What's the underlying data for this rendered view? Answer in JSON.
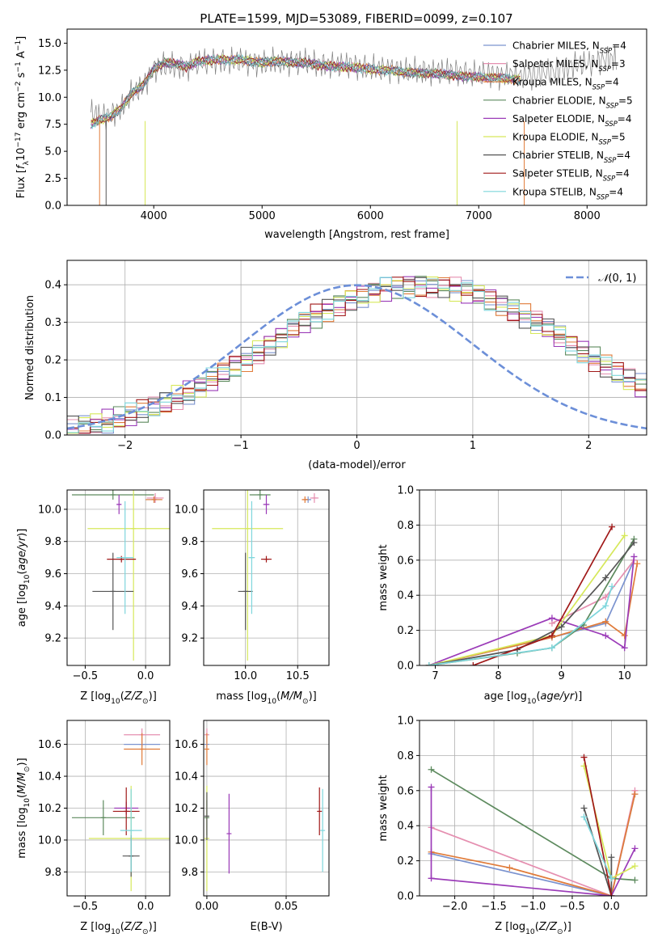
{
  "figure_title": "PLATE=1599, MJD=53089, FIBERID=0099, z=0.107",
  "colors": {
    "Chabrier MILES": "#7b93cf",
    "Salpeter MILES": "#e58fb0",
    "Kroupa MILES": "#e07b39",
    "Chabrier ELODIE": "#5d8a5e",
    "Salpeter ELODIE": "#9b3bb8",
    "Kroupa ELODIE": "#d6e85a",
    "Chabrier STELIB": "#555555",
    "Salpeter STELIB": "#a01818",
    "Kroupa STELIB": "#7ed6dc",
    "normal_curve": "#6c8fd8",
    "grid": "#b0b0b0"
  },
  "chart_data": [
    {
      "type": "line",
      "panel": "spectrum",
      "title": "PLATE=1599, MJD=53089, FIBERID=0099, z=0.107",
      "xlabel": "wavelength [Angstrom, rest frame]",
      "ylabel": "Flux [f_λ 10^-17 erg cm^-2 s^-1 A^-1]",
      "xlim": [
        3200,
        8550
      ],
      "ylim": [
        0,
        16.3
      ],
      "xticks": [
        4000,
        5000,
        6000,
        7000,
        8000
      ],
      "yticks": [
        0.0,
        2.5,
        5.0,
        7.5,
        10.0,
        12.5,
        15.0
      ],
      "grid": false,
      "legend_position": "top-right",
      "legend": [
        "Chabrier MILES, N_SSP=4",
        "Salpeter MILES, N_SSP=3",
        "Kroupa MILES, N_SSP=4",
        "Chabrier ELODIE, N_SSP=5",
        "Salpeter ELODIE, N_SSP=4",
        "Kroupa ELODIE, N_SSP=5",
        "Chabrier STELIB, N_SSP=4",
        "Salpeter STELIB, N_SSP=4",
        "Kroupa STELIB, N_SSP=4"
      ],
      "data_series": {
        "name": "data",
        "color": "#808080",
        "x": [
          3420,
          3500,
          3600,
          3700,
          3800,
          3900,
          4000,
          4100,
          4200,
          4300,
          4400,
          4500,
          4600,
          4700,
          4800,
          4900,
          5000,
          5100,
          5200,
          5300,
          5400,
          5500,
          5600,
          5700,
          5800,
          5900,
          6000,
          6100,
          6200,
          6300,
          6400,
          6500,
          6600,
          6700,
          6800,
          6900,
          7000,
          7100,
          7200,
          7300,
          7400,
          7500,
          7600,
          7700,
          7800,
          7900,
          8000,
          8100,
          8200,
          8280
        ],
        "y": [
          8.6,
          8.2,
          8.3,
          9.0,
          10.4,
          11.0,
          12.5,
          13.0,
          12.9,
          12.7,
          13.2,
          13.3,
          13.4,
          13.3,
          13.4,
          13.2,
          13.1,
          13.3,
          13.3,
          13.2,
          13.3,
          13.1,
          13.0,
          12.9,
          13.0,
          12.8,
          12.7,
          12.6,
          12.6,
          12.4,
          12.5,
          12.4,
          12.3,
          12.4,
          12.3,
          12.2,
          12.1,
          12.2,
          11.9,
          12.1,
          11.9,
          12.0,
          12.3,
          12.4,
          12.7,
          13.0,
          13.1,
          13.3,
          13.6,
          13.4
        ]
      },
      "model_series": {
        "x": [
          3420,
          3500,
          3600,
          3700,
          3800,
          3900,
          4000,
          4100,
          4200,
          4300,
          4400,
          4500,
          4600,
          4700,
          4800,
          4900,
          5000,
          5100,
          5200,
          5300,
          5400,
          5500,
          5600,
          5700,
          5800,
          5900,
          6000,
          6100,
          6200,
          6300,
          6400,
          6500,
          6600,
          6700,
          6800,
          6900,
          7000,
          7100,
          7200,
          7300,
          7400
        ],
        "y": [
          7.5,
          7.9,
          8.2,
          9.0,
          10.4,
          11.1,
          12.6,
          13.2,
          13.1,
          12.8,
          13.3,
          13.4,
          13.5,
          13.4,
          13.5,
          13.3,
          13.2,
          13.3,
          13.3,
          13.2,
          13.2,
          13.0,
          12.9,
          12.8,
          12.8,
          12.7,
          12.6,
          12.5,
          12.5,
          12.3,
          12.3,
          12.2,
          12.2,
          12.1,
          12.0,
          11.9,
          11.9,
          11.8,
          11.8,
          11.7,
          11.6
        ]
      }
    },
    {
      "type": "line",
      "panel": "residuals",
      "xlabel": "(data-model)/error",
      "ylabel": "Normed distribution",
      "xlim": [
        -2.5,
        2.5
      ],
      "ylim": [
        0,
        0.465
      ],
      "xticks": [
        -2,
        -1,
        0,
        1,
        2
      ],
      "yticks": [
        0.0,
        0.1,
        0.2,
        0.3,
        0.4
      ],
      "grid": true,
      "legend_position": "top-right",
      "legend": [
        "N(0,1)"
      ],
      "bin_width": 0.1,
      "bin_start": -2.5,
      "histogram_envelope": [
        0.018,
        0.022,
        0.03,
        0.036,
        0.044,
        0.052,
        0.062,
        0.073,
        0.086,
        0.1,
        0.114,
        0.13,
        0.147,
        0.164,
        0.183,
        0.202,
        0.222,
        0.243,
        0.262,
        0.282,
        0.3,
        0.318,
        0.334,
        0.349,
        0.362,
        0.372,
        0.382,
        0.39,
        0.395,
        0.398,
        0.399,
        0.398,
        0.395,
        0.39,
        0.382,
        0.372,
        0.362,
        0.349,
        0.334,
        0.318,
        0.3,
        0.282,
        0.262,
        0.243,
        0.222,
        0.202,
        0.183,
        0.164,
        0.147,
        0.13
      ]
    },
    {
      "type": "scatter",
      "panel": "age-vs-Z",
      "xlabel": "Z [log10(Z/Z⊙)]",
      "ylabel": "age  [log10(age/yr)]",
      "xlim": [
        -0.65,
        0.2
      ],
      "ylim": [
        9.03,
        10.12
      ],
      "xticks": [
        -0.5,
        0.0
      ],
      "yticks": [
        9.2,
        9.4,
        9.6,
        9.8,
        10.0
      ],
      "grid": true,
      "points": [
        {
          "model": "Chabrier MILES",
          "x": 0.07,
          "y": 10.06,
          "xerr": 0.06,
          "yerr": 0.02
        },
        {
          "model": "Salpeter MILES",
          "x": 0.08,
          "y": 10.07,
          "xerr": 0.07,
          "yerr": 0.03
        },
        {
          "model": "Kroupa MILES",
          "x": 0.07,
          "y": 10.06,
          "xerr": 0.07,
          "yerr": 0.02
        },
        {
          "model": "Chabrier ELODIE",
          "x": -0.27,
          "y": 10.09,
          "xerr": 0.34,
          "yerr": 0.03
        },
        {
          "model": "Salpeter ELODIE",
          "x": -0.22,
          "y": 10.03,
          "xerr": 0.02,
          "yerr": 0.06
        },
        {
          "model": "Kroupa ELODIE",
          "x": -0.1,
          "y": 9.88,
          "xerr": 0.38,
          "yerr": 0.82
        },
        {
          "model": "Chabrier STELIB",
          "x": -0.27,
          "y": 9.49,
          "xerr": 0.17,
          "yerr": 0.24
        },
        {
          "model": "Salpeter STELIB",
          "x": -0.2,
          "y": 9.69,
          "xerr": 0.12,
          "yerr": 0.02
        },
        {
          "model": "Kroupa STELIB",
          "x": -0.17,
          "y": 9.7,
          "xerr": 0.07,
          "yerr": 0.35
        }
      ]
    },
    {
      "type": "scatter",
      "panel": "age-vs-mass",
      "xlabel": "mass [log10(M/M⊙)]",
      "ylabel": "",
      "xlim": [
        9.6,
        10.8
      ],
      "ylim": [
        9.03,
        10.12
      ],
      "xticks": [
        10.0,
        10.5
      ],
      "yticks": [
        9.2,
        9.4,
        9.6,
        9.8,
        10.0
      ],
      "grid": true,
      "points": [
        {
          "model": "Chabrier MILES",
          "x": 10.6,
          "y": 10.06,
          "xerr": 0.03,
          "yerr": 0.02
        },
        {
          "model": "Salpeter MILES",
          "x": 10.66,
          "y": 10.07,
          "xerr": 0.04,
          "yerr": 0.03
        },
        {
          "model": "Kroupa MILES",
          "x": 10.57,
          "y": 10.06,
          "xerr": 0.03,
          "yerr": 0.02
        },
        {
          "model": "Chabrier ELODIE",
          "x": 10.14,
          "y": 10.09,
          "xerr": 0.1,
          "yerr": 0.03
        },
        {
          "model": "Salpeter ELODIE",
          "x": 10.2,
          "y": 10.03,
          "xerr": 0.03,
          "yerr": 0.06
        },
        {
          "model": "Kroupa ELODIE",
          "x": 10.02,
          "y": 9.88,
          "xerr": 0.34,
          "yerr": 0.82
        },
        {
          "model": "Chabrier STELIB",
          "x": 10.0,
          "y": 9.49,
          "xerr": 0.07,
          "yerr": 0.24
        },
        {
          "model": "Salpeter STELIB",
          "x": 10.2,
          "y": 9.69,
          "xerr": 0.05,
          "yerr": 0.02
        },
        {
          "model": "Kroupa STELIB",
          "x": 10.06,
          "y": 9.7,
          "xerr": 0.03,
          "yerr": 0.35
        }
      ]
    },
    {
      "type": "line",
      "panel": "mass-weight-vs-age",
      "xlabel": "age  [log10(age/yr)]",
      "ylabel": "mass weight",
      "xlim": [
        6.75,
        10.35
      ],
      "ylim": [
        0,
        1.0
      ],
      "xticks": [
        7,
        8,
        9,
        10
      ],
      "yticks": [
        0.0,
        0.2,
        0.4,
        0.6,
        0.8,
        1.0
      ],
      "grid": true,
      "series": [
        {
          "model": "Chabrier MILES",
          "x": [
            6.9,
            8.85,
            9.7,
            10.15
          ],
          "y": [
            0.0,
            0.16,
            0.24,
            0.6
          ]
        },
        {
          "model": "Salpeter MILES",
          "x": [
            8.85,
            9.7,
            10.15
          ],
          "y": [
            0.24,
            0.39,
            0.6
          ]
        },
        {
          "model": "Kroupa MILES",
          "x": [
            6.9,
            8.85,
            9.7,
            10.0,
            10.2
          ],
          "y": [
            0.0,
            0.16,
            0.25,
            0.17,
            0.58
          ]
        },
        {
          "model": "Chabrier ELODIE",
          "x": [
            6.9,
            8.3,
            8.85,
            9.35,
            10.15
          ],
          "y": [
            0.0,
            0.07,
            0.1,
            0.23,
            0.72
          ]
        },
        {
          "model": "Salpeter ELODIE",
          "x": [
            6.9,
            8.85,
            9.7,
            10.0,
            10.15
          ],
          "y": [
            0.0,
            0.27,
            0.17,
            0.1,
            0.62
          ]
        },
        {
          "model": "Kroupa ELODIE",
          "x": [
            6.9,
            8.85,
            10.0
          ],
          "y": [
            0.0,
            0.17,
            0.74
          ]
        },
        {
          "model": "Chabrier STELIB",
          "x": [
            6.9,
            8.3,
            9.0,
            9.7,
            10.15
          ],
          "y": [
            0.0,
            0.09,
            0.22,
            0.5,
            0.7
          ]
        },
        {
          "model": "Salpeter STELIB",
          "x": [
            7.6,
            8.85,
            9.8
          ],
          "y": [
            0.0,
            0.17,
            0.79
          ]
        },
        {
          "model": "Kroupa STELIB",
          "x": [
            6.9,
            8.85,
            9.7,
            9.8
          ],
          "y": [
            0.0,
            0.1,
            0.34,
            0.45
          ]
        }
      ]
    },
    {
      "type": "scatter",
      "panel": "mass-vs-Z",
      "xlabel": "Z [log10(Z/Z⊙)]",
      "ylabel": "mass [log10(M/M⊙)]",
      "xlim": [
        -0.65,
        0.2
      ],
      "ylim": [
        9.65,
        10.75
      ],
      "xticks": [
        -0.5,
        0.0
      ],
      "yticks": [
        9.8,
        10.0,
        10.2,
        10.4,
        10.6
      ],
      "grid": true,
      "points": [
        {
          "model": "Chabrier MILES",
          "x": -0.03,
          "y": 10.6,
          "xerr": 0.15,
          "yerr": 0.02
        },
        {
          "model": "Salpeter MILES",
          "x": -0.03,
          "y": 10.66,
          "xerr": 0.15,
          "yerr": 0.04
        },
        {
          "model": "Kroupa MILES",
          "x": -0.03,
          "y": 10.57,
          "xerr": 0.15,
          "yerr": 0.1
        },
        {
          "model": "Chabrier ELODIE",
          "x": -0.35,
          "y": 10.14,
          "xerr": 0.26,
          "yerr": 0.11
        },
        {
          "model": "Salpeter ELODIE",
          "x": -0.16,
          "y": 10.2,
          "xerr": 0.1,
          "yerr": 0.04
        },
        {
          "model": "Kroupa ELODIE",
          "x": -0.12,
          "y": 10.01,
          "xerr": 0.35,
          "yerr": 0.33
        },
        {
          "model": "Chabrier STELIB",
          "x": -0.12,
          "y": 9.9,
          "xerr": 0.07,
          "yerr": 0.13
        },
        {
          "model": "Salpeter STELIB",
          "x": -0.16,
          "y": 10.18,
          "xerr": 0.11,
          "yerr": 0.15
        },
        {
          "model": "Kroupa STELIB",
          "x": -0.12,
          "y": 10.06,
          "xerr": 0.09,
          "yerr": 0.26
        }
      ]
    },
    {
      "type": "scatter",
      "panel": "mass-vs-EBV",
      "xlabel": "E(B-V)",
      "ylabel": "",
      "xlim": [
        -0.002,
        0.077
      ],
      "ylim": [
        9.65,
        10.75
      ],
      "xticks": [
        0.0,
        0.05
      ],
      "yticks": [
        9.8,
        10.0,
        10.2,
        10.4,
        10.6
      ],
      "grid": true,
      "points": [
        {
          "model": "Chabrier MILES",
          "x": 0.0,
          "y": 10.6,
          "xerr": 0,
          "yerr": 0.02
        },
        {
          "model": "Salpeter MILES",
          "x": 0.0,
          "y": 10.66,
          "xerr": 0,
          "yerr": 0.04
        },
        {
          "model": "Kroupa MILES",
          "x": 0.0,
          "y": 10.57,
          "xerr": 0,
          "yerr": 0.1
        },
        {
          "model": "Chabrier ELODIE",
          "x": 0.0,
          "y": 10.14,
          "xerr": 0,
          "yerr": 0.11
        },
        {
          "model": "Salpeter ELODIE",
          "x": 0.014,
          "y": 10.04,
          "xerr": 0,
          "yerr": 0.25
        },
        {
          "model": "Kroupa ELODIE",
          "x": 0.0,
          "y": 10.01,
          "xerr": 0,
          "yerr": 0.33
        },
        {
          "model": "Chabrier STELIB",
          "x": 0.0,
          "y": 10.15,
          "xerr": 0,
          "yerr": 0.15
        },
        {
          "model": "Salpeter STELIB",
          "x": 0.071,
          "y": 10.18,
          "xerr": 0,
          "yerr": 0.15
        },
        {
          "model": "Kroupa STELIB",
          "x": 0.073,
          "y": 10.06,
          "xerr": 0,
          "yerr": 0.26
        }
      ]
    },
    {
      "type": "line",
      "panel": "mass-weight-vs-Z",
      "xlabel": "Z [log10(Z/Z⊙)]",
      "ylabel": "mass weight",
      "xlim": [
        -2.45,
        0.45
      ],
      "ylim": [
        0,
        1.0
      ],
      "xticks": [
        -2.0,
        -1.5,
        -1.0,
        -0.5,
        0.0
      ],
      "yticks": [
        0.0,
        0.2,
        0.4,
        0.6,
        0.8,
        1.0
      ],
      "grid": true,
      "series": [
        {
          "model": "Chabrier MILES",
          "x": [
            -2.3,
            0.0,
            0.3
          ],
          "y": [
            0.24,
            0.0,
            0.58
          ]
        },
        {
          "model": "Salpeter MILES",
          "x": [
            -2.3,
            0.0,
            0.3
          ],
          "y": [
            0.39,
            0.0,
            0.6
          ]
        },
        {
          "model": "Kroupa MILES",
          "x": [
            -2.3,
            -1.3,
            0.0,
            0.3
          ],
          "y": [
            0.25,
            0.16,
            0.0,
            0.58
          ]
        },
        {
          "model": "Chabrier ELODIE",
          "x": [
            -2.3,
            0.0,
            0.3
          ],
          "y": [
            0.72,
            0.1,
            0.09
          ]
        },
        {
          "model": "Salpeter ELODIE",
          "x": [
            -2.3,
            -2.3,
            0.0,
            0.3
          ],
          "y": [
            0.62,
            0.1,
            0.0,
            0.27
          ]
        },
        {
          "model": "Kroupa ELODIE",
          "x": [
            -0.35,
            0.0,
            0.3
          ],
          "y": [
            0.74,
            0.1,
            0.17
          ]
        },
        {
          "model": "Chabrier STELIB",
          "x": [
            -0.35,
            0.0,
            0.0
          ],
          "y": [
            0.5,
            0.0,
            0.22
          ]
        },
        {
          "model": "Salpeter STELIB",
          "x": [
            -0.35,
            0.0
          ],
          "y": [
            0.79,
            0.0
          ]
        },
        {
          "model": "Kroupa STELIB",
          "x": [
            -0.35,
            0.0
          ],
          "y": [
            0.45,
            0.1
          ]
        }
      ]
    }
  ]
}
